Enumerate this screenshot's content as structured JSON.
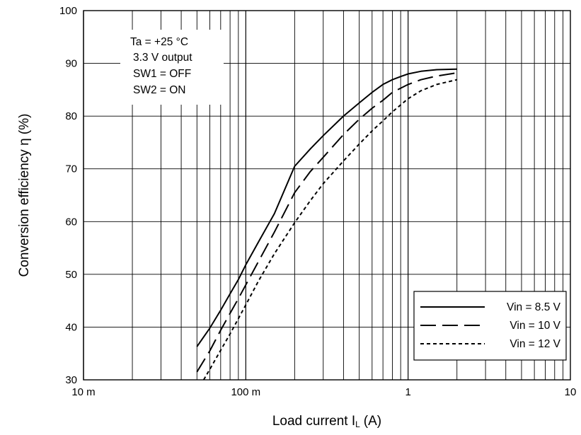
{
  "chart_data": {
    "type": "line",
    "xlabel": "Load current I",
    "xlabel_sub": "L",
    "xlabel_unit": "(A)",
    "ylabel": "Conversion efficiency η (%)",
    "x_scale": "log",
    "xlim": [
      0.01,
      10
    ],
    "ylim": [
      30,
      100
    ],
    "x_tick_values": [
      0.01,
      0.1,
      1,
      10
    ],
    "x_tick_labels": [
      "10 m",
      "100 m",
      "1",
      "10"
    ],
    "y_tick_values": [
      30,
      40,
      50,
      60,
      70,
      80,
      90,
      100
    ],
    "y_tick_labels": [
      "30",
      "40",
      "50",
      "60",
      "70",
      "80",
      "90",
      "100"
    ],
    "grid": true,
    "annotations": [
      "Ta = +25 °C",
      "3.3 V output",
      "SW1 = OFF",
      "SW2 = ON"
    ],
    "legend_position": "bottom-right",
    "series": [
      {
        "name": "Vin = 8.5 V",
        "dash": "solid",
        "x": [
          0.05,
          0.06,
          0.07,
          0.08,
          0.09,
          0.1,
          0.12,
          0.15,
          0.2,
          0.25,
          0.3,
          0.4,
          0.5,
          0.6,
          0.7,
          0.8,
          0.9,
          1.0,
          1.2,
          1.5,
          2.0
        ],
        "y": [
          36.3,
          39.8,
          43.2,
          46.3,
          49.0,
          51.8,
          56.2,
          61.5,
          70.5,
          73.8,
          76.3,
          80.0,
          82.5,
          84.5,
          86.0,
          86.9,
          87.5,
          88.0,
          88.5,
          88.8,
          88.9
        ]
      },
      {
        "name": "Vin = 10 V",
        "dash": "long-dash",
        "x": [
          0.05,
          0.06,
          0.07,
          0.08,
          0.09,
          0.1,
          0.12,
          0.15,
          0.2,
          0.25,
          0.3,
          0.4,
          0.5,
          0.6,
          0.7,
          0.8,
          1.0,
          1.2,
          1.5,
          2.0
        ],
        "y": [
          31.5,
          35.5,
          39.4,
          42.6,
          45.4,
          48.0,
          52.5,
          58.0,
          65.5,
          69.5,
          72.2,
          76.5,
          79.4,
          81.5,
          83.0,
          84.5,
          86.0,
          86.9,
          87.6,
          88.2
        ]
      },
      {
        "name": "Vin = 12 V",
        "dash": "short-dash",
        "x": [
          0.055,
          0.06,
          0.07,
          0.08,
          0.09,
          0.1,
          0.12,
          0.15,
          0.2,
          0.25,
          0.3,
          0.4,
          0.5,
          0.6,
          0.7,
          0.8,
          1.0,
          1.2,
          1.5,
          2.0
        ],
        "y": [
          30.0,
          32.0,
          35.6,
          38.7,
          41.6,
          44.2,
          48.8,
          53.9,
          59.8,
          64.0,
          67.2,
          71.5,
          74.7,
          77.2,
          79.1,
          80.8,
          83.3,
          84.8,
          86.0,
          86.9
        ]
      }
    ]
  }
}
